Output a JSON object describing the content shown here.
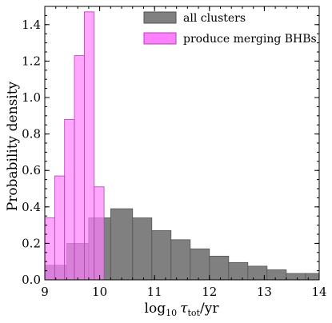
{
  "chart_data": {
    "type": "bar",
    "xlabel_main": "log",
    "xlabel_sub": "10",
    "xlabel_tau": "τ",
    "xlabel_tau_sub": "tot",
    "xlabel_unit": "/yr",
    "ylabel": "Probability density",
    "xlim": [
      9,
      14
    ],
    "ylim": [
      0,
      1.5
    ],
    "xticks": [
      "9",
      "10",
      "11",
      "12",
      "13",
      "14"
    ],
    "yticks": [
      "0.0",
      "0.2",
      "0.4",
      "0.6",
      "0.8",
      "1.0",
      "1.2",
      "1.4"
    ],
    "legend_position": "top-right",
    "series": [
      {
        "name": "all clusters",
        "color": "#808080",
        "bin_edges": [
          9.0,
          9.4,
          9.8,
          10.2,
          10.6,
          10.95,
          11.3,
          11.65,
          12.0,
          12.35,
          12.7,
          13.05,
          13.4,
          13.75,
          14.0
        ],
        "values": [
          0.08,
          0.2,
          0.34,
          0.39,
          0.34,
          0.27,
          0.22,
          0.17,
          0.13,
          0.095,
          0.075,
          0.055,
          0.035,
          0.035
        ]
      },
      {
        "name": "produce merging BHBs",
        "color": "#ff80ff",
        "bin_edges": [
          9.0,
          9.18,
          9.36,
          9.54,
          9.72,
          9.9,
          10.08,
          10.26
        ],
        "values": [
          0.34,
          0.57,
          0.88,
          1.23,
          1.47,
          0.51,
          0.0
        ]
      }
    ]
  }
}
